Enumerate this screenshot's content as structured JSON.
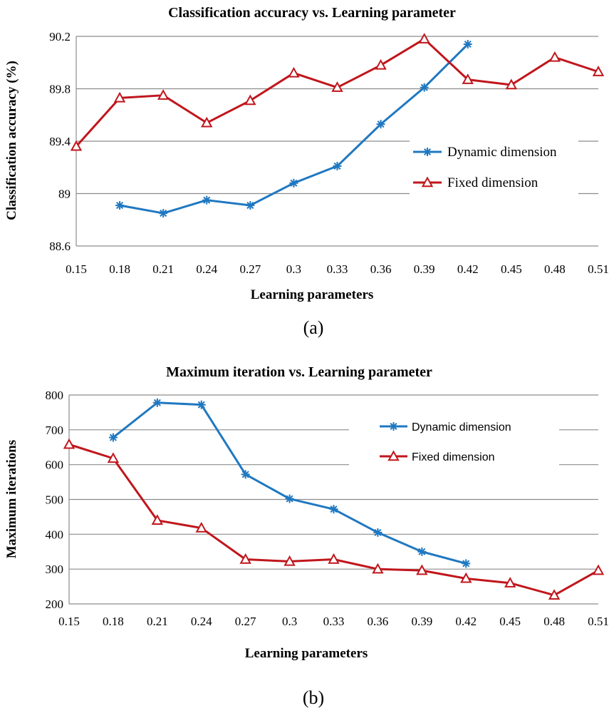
{
  "chart_data": [
    {
      "type": "line",
      "title": "Classification accuracy vs. Learning parameter",
      "xlabel": "Learning parameters",
      "ylabel": "Classification accuracy (%)",
      "categories": [
        "0.15",
        "0.18",
        "0.21",
        "0.24",
        "0.27",
        "0.3",
        "0.33",
        "0.36",
        "0.39",
        "0.42",
        "0.45",
        "0.48",
        "0.51"
      ],
      "yticks": [
        "88.6",
        "89",
        "89.4",
        "89.8",
        "90.2"
      ],
      "ylim": [
        88.6,
        90.2
      ],
      "grid": true,
      "legend_position": "right",
      "series": [
        {
          "name": "Dynamic dimension",
          "marker": "asterisk",
          "color": "#1f78c1",
          "values": [
            null,
            88.91,
            88.85,
            88.95,
            88.91,
            89.08,
            89.21,
            89.53,
            89.81,
            90.14,
            null,
            null,
            null
          ]
        },
        {
          "name": "Fixed dimension",
          "marker": "triangle",
          "color": "#c0161c",
          "values": [
            89.36,
            89.73,
            89.75,
            89.54,
            89.71,
            89.92,
            89.81,
            89.98,
            90.18,
            89.87,
            89.83,
            90.04,
            89.93
          ]
        }
      ],
      "caption": "(a)"
    },
    {
      "type": "line",
      "title": "Maximum iteration  vs. Learning parameter",
      "xlabel": "Learning parameters",
      "ylabel": "Maximum iterations",
      "categories": [
        "0.15",
        "0.18",
        "0.21",
        "0.24",
        "0.27",
        "0.3",
        "0.33",
        "0.36",
        "0.39",
        "0.42",
        "0.45",
        "0.48",
        "0.51"
      ],
      "yticks": [
        "200",
        "300",
        "400",
        "500",
        "600",
        "700",
        "800"
      ],
      "ylim": [
        200,
        800
      ],
      "grid": true,
      "legend_position": "top-right",
      "series": [
        {
          "name": "Dynamic dimension",
          "marker": "asterisk",
          "color": "#1f78c1",
          "values": [
            null,
            678,
            778,
            772,
            572,
            502,
            472,
            405,
            350,
            316,
            null,
            null,
            null
          ]
        },
        {
          "name": "Fixed dimension",
          "marker": "triangle",
          "color": "#c0161c",
          "values": [
            658,
            618,
            440,
            418,
            328,
            322,
            328,
            300,
            296,
            273,
            260,
            225,
            296
          ]
        }
      ],
      "caption": "(b)"
    }
  ]
}
